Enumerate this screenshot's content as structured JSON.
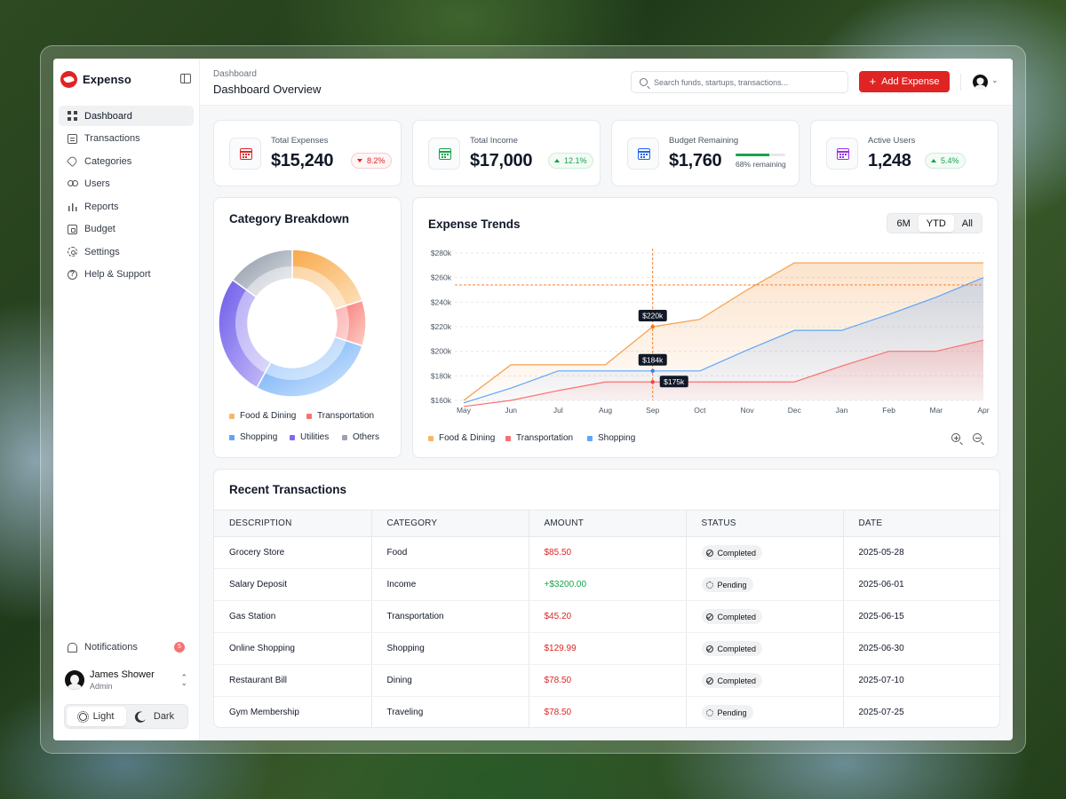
{
  "brand": {
    "name": "Expenso"
  },
  "sidebar": {
    "items": [
      {
        "label": "Dashboard",
        "icon": "grid-icon",
        "active": true
      },
      {
        "label": "Transactions",
        "icon": "list-icon"
      },
      {
        "label": "Categories",
        "icon": "tag-icon"
      },
      {
        "label": "Users",
        "icon": "users-icon"
      },
      {
        "label": "Reports",
        "icon": "bar-chart-icon"
      },
      {
        "label": "Budget",
        "icon": "wallet-icon"
      },
      {
        "label": "Settings",
        "icon": "gear-icon"
      },
      {
        "label": "Help & Support",
        "icon": "help-icon"
      }
    ],
    "notifications": {
      "label": "Notifications",
      "count": "5"
    },
    "user": {
      "name": "James Shower",
      "role": "Admin"
    },
    "theme": {
      "light": "Light",
      "dark": "Dark",
      "active": "light"
    }
  },
  "header": {
    "breadcrumb": "Dashboard",
    "title": "Dashboard Overview",
    "search_placeholder": "Search funds, startups, transactions...",
    "add_button": "Add Expense"
  },
  "stats": [
    {
      "label": "Total Expenses",
      "value": "$15,240",
      "change": "8.2%",
      "trend": "down",
      "icon_color": "#dc2626"
    },
    {
      "label": "Total Income",
      "value": "$17,000",
      "change": "12.1%",
      "trend": "up",
      "icon_color": "#16a34a"
    },
    {
      "label": "Budget Remaining",
      "value": "$1,760",
      "progress": 0.68,
      "note": "68% remaining",
      "icon_color": "#2563eb"
    },
    {
      "label": "Active Users",
      "value": "1,248",
      "change": "5.4%",
      "trend": "up",
      "icon_color": "#9333ea"
    }
  ],
  "category_breakdown": {
    "title": "Category Breakdown",
    "legend": [
      {
        "name": "Food & Dining",
        "color": "#f59e4b"
      },
      {
        "name": "Transportation",
        "color": "#f87171"
      },
      {
        "name": "Shopping",
        "color": "#60a5fa"
      },
      {
        "name": "Utilities",
        "color": "#7c6cf0"
      },
      {
        "name": "Others",
        "color": "#9ca3af"
      }
    ]
  },
  "expense_trends": {
    "title": "Expense Trends",
    "ranges": [
      "6M",
      "YTD",
      "All"
    ],
    "active_range": "YTD",
    "legend": [
      {
        "name": "Food & Dining",
        "color": "#f59e4b"
      },
      {
        "name": "Transportation",
        "color": "#f87171"
      },
      {
        "name": "Shopping",
        "color": "#60a5fa"
      }
    ]
  },
  "chart_data": [
    {
      "type": "pie",
      "title": "Category Breakdown",
      "categories": [
        "Food & Dining",
        "Transportation",
        "Shopping",
        "Utilities",
        "Others"
      ],
      "values": [
        20,
        10,
        28,
        27,
        15
      ],
      "donut": true
    },
    {
      "type": "area",
      "title": "Expense Trends",
      "x": [
        "May",
        "Jun",
        "Jul",
        "Aug",
        "Sep",
        "Oct",
        "Nov",
        "Dec",
        "Jan",
        "Feb",
        "Mar",
        "Apr"
      ],
      "ylim": [
        160,
        280
      ],
      "yticks": [
        "$160k",
        "$180k",
        "$200k",
        "$220k",
        "$240k",
        "$260k",
        "$280k"
      ],
      "reference_line": 254,
      "crosshair_x": "Sep",
      "series": [
        {
          "name": "Food & Dining",
          "color": "#f59e4b",
          "points": [
            [
              "May",
              160
            ],
            [
              "Jun",
              189
            ],
            [
              "Jul",
              189
            ],
            [
              "Aug",
              189
            ],
            [
              "Sep",
              220
            ],
            [
              "Oct",
              226
            ],
            [
              "Nov",
              250
            ],
            [
              "Dec",
              272
            ],
            [
              "Jan",
              272
            ],
            [
              "Feb",
              272
            ],
            [
              "Mar",
              272
            ],
            [
              "Apr",
              272
            ]
          ]
        },
        {
          "name": "Shopping",
          "color": "#60a5fa",
          "points": [
            [
              "May",
              158
            ],
            [
              "Jun",
              170
            ],
            [
              "Jul",
              184
            ],
            [
              "Aug",
              184
            ],
            [
              "Sep",
              184
            ],
            [
              "Oct",
              184
            ],
            [
              "Nov",
              201
            ],
            [
              "Dec",
              217
            ],
            [
              "Jan",
              217
            ],
            [
              "Feb",
              230
            ],
            [
              "Mar",
              244
            ],
            [
              "Apr",
              260
            ]
          ]
        },
        {
          "name": "Transportation",
          "color": "#f87171",
          "points": [
            [
              "May",
              155
            ],
            [
              "Jun",
              160
            ],
            [
              "Jul",
              168
            ],
            [
              "Aug",
              175
            ],
            [
              "Sep",
              175
            ],
            [
              "Oct",
              175
            ],
            [
              "Nov",
              175
            ],
            [
              "Dec",
              175
            ],
            [
              "Jan",
              188
            ],
            [
              "Feb",
              200
            ],
            [
              "Mar",
              200
            ],
            [
              "Apr",
              209
            ]
          ]
        }
      ],
      "annotations": [
        {
          "label": "$220k",
          "x": "Sep",
          "y": 220
        },
        {
          "label": "$184k",
          "x": "Sep",
          "y": 184
        },
        {
          "label": "$175k",
          "x": "Sep",
          "y": 175
        }
      ]
    }
  ],
  "transactions": {
    "title": "Recent Transactions",
    "columns": [
      "DESCRIPTION",
      "CATEGORY",
      "AMOUNT",
      "STATUS",
      "DATE"
    ],
    "rows": [
      {
        "description": "Grocery Store",
        "category": "Food",
        "amount": "$85.50",
        "sign": "neg",
        "status": "Completed",
        "date": "2025-05-28"
      },
      {
        "description": "Salary Deposit",
        "category": "Income",
        "amount": "+$3200.00",
        "sign": "pos",
        "status": "Pending",
        "date": "2025-06-01"
      },
      {
        "description": "Gas Station",
        "category": "Transportation",
        "amount": "$45.20",
        "sign": "neg",
        "status": "Completed",
        "date": "2025-06-15"
      },
      {
        "description": "Online Shopping",
        "category": "Shopping",
        "amount": "$129.99",
        "sign": "neg",
        "status": "Completed",
        "date": "2025-06-30"
      },
      {
        "description": "Restaurant Bill",
        "category": "Dining",
        "amount": "$78.50",
        "sign": "neg",
        "status": "Completed",
        "date": "2025-07-10"
      },
      {
        "description": "Gym Membership",
        "category": "Traveling",
        "amount": "$78.50",
        "sign": "neg",
        "status": "Pending",
        "date": "2025-07-25"
      }
    ]
  }
}
